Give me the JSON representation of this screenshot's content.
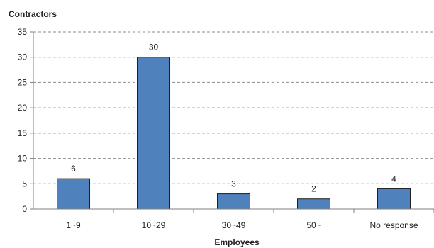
{
  "chart_data": {
    "type": "bar",
    "ylabel": "Contractors",
    "xlabel": "Employees",
    "categories": [
      "1~9",
      "10~29",
      "30~49",
      "50~",
      "No response"
    ],
    "values": [
      6,
      30,
      3,
      2,
      4
    ],
    "ylim": [
      0,
      35
    ],
    "yticks": [
      0,
      5,
      10,
      15,
      20,
      25,
      30,
      35
    ],
    "grid": true,
    "bar_color": "#4f81bd",
    "data_labels": [
      "6",
      "30",
      "3",
      "2",
      "4"
    ]
  }
}
